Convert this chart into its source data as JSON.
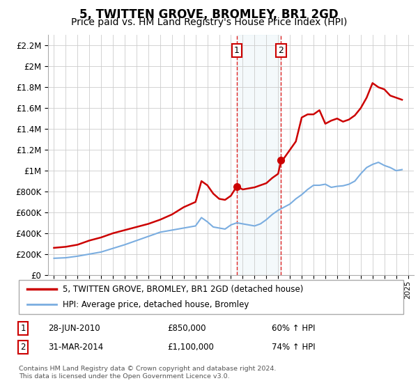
{
  "title": "5, TWITTEN GROVE, BROMLEY, BR1 2GD",
  "subtitle": "Price paid vs. HM Land Registry's House Price Index (HPI)",
  "title_fontsize": 12,
  "subtitle_fontsize": 10,
  "background_color": "#ffffff",
  "plot_bg_color": "#ffffff",
  "grid_color": "#cccccc",
  "red_line_color": "#cc0000",
  "blue_line_color": "#7aade0",
  "marker1_x": 2010.49,
  "marker1_y": 850000,
  "marker2_x": 2014.25,
  "marker2_y": 1100000,
  "marker1_label": "1",
  "marker2_label": "2",
  "marker1_date": "28-JUN-2010",
  "marker1_price": "£850,000",
  "marker1_hpi": "60% ↑ HPI",
  "marker2_date": "31-MAR-2014",
  "marker2_price": "£1,100,000",
  "marker2_hpi": "74% ↑ HPI",
  "legend_label_red": "5, TWITTEN GROVE, BROMLEY, BR1 2GD (detached house)",
  "legend_label_blue": "HPI: Average price, detached house, Bromley",
  "footer_text": "Contains HM Land Registry data © Crown copyright and database right 2024.\nThis data is licensed under the Open Government Licence v3.0.",
  "ylim": [
    0,
    2300000
  ],
  "yticks": [
    0,
    200000,
    400000,
    600000,
    800000,
    1000000,
    1200000,
    1400000,
    1600000,
    1800000,
    2000000,
    2200000
  ],
  "xlim": [
    1994.5,
    2025.5
  ],
  "years_red": [
    1995,
    1996,
    1997,
    1998,
    1999,
    2000,
    2001,
    2002,
    2003,
    2004,
    2005,
    2006,
    2007,
    2007.5,
    2008,
    2008.5,
    2009,
    2009.5,
    2010,
    2010.49,
    2011,
    2011.5,
    2012,
    2012.5,
    2013,
    2013.5,
    2014,
    2014.25,
    2014.5,
    2015,
    2015.5,
    2016,
    2016.5,
    2017,
    2017.5,
    2018,
    2018.5,
    2019,
    2019.5,
    2020,
    2020.5,
    2021,
    2021.5,
    2022,
    2022.5,
    2023,
    2023.5,
    2024,
    2024.5
  ],
  "values_red": [
    260000,
    270000,
    290000,
    330000,
    360000,
    400000,
    430000,
    460000,
    490000,
    530000,
    580000,
    650000,
    700000,
    900000,
    860000,
    780000,
    730000,
    720000,
    760000,
    850000,
    820000,
    830000,
    840000,
    860000,
    880000,
    930000,
    970000,
    1100000,
    1120000,
    1200000,
    1280000,
    1510000,
    1540000,
    1540000,
    1580000,
    1450000,
    1480000,
    1500000,
    1470000,
    1490000,
    1530000,
    1600000,
    1700000,
    1840000,
    1800000,
    1780000,
    1720000,
    1700000,
    1680000
  ],
  "years_blue": [
    1995,
    1996,
    1997,
    1998,
    1999,
    2000,
    2001,
    2002,
    2003,
    2004,
    2005,
    2006,
    2007,
    2007.5,
    2008,
    2008.5,
    2009,
    2009.5,
    2010,
    2010.5,
    2011,
    2011.5,
    2012,
    2012.5,
    2013,
    2013.5,
    2014,
    2014.5,
    2015,
    2015.5,
    2016,
    2016.5,
    2017,
    2017.5,
    2018,
    2018.5,
    2019,
    2019.5,
    2020,
    2020.5,
    2021,
    2021.5,
    2022,
    2022.5,
    2023,
    2023.5,
    2024,
    2024.5
  ],
  "values_blue": [
    160000,
    165000,
    180000,
    200000,
    220000,
    255000,
    290000,
    330000,
    370000,
    410000,
    430000,
    450000,
    470000,
    550000,
    510000,
    460000,
    450000,
    440000,
    480000,
    500000,
    490000,
    480000,
    470000,
    490000,
    530000,
    580000,
    620000,
    650000,
    680000,
    730000,
    770000,
    820000,
    860000,
    860000,
    870000,
    840000,
    850000,
    855000,
    870000,
    900000,
    970000,
    1030000,
    1060000,
    1080000,
    1050000,
    1030000,
    1000000,
    1010000
  ]
}
